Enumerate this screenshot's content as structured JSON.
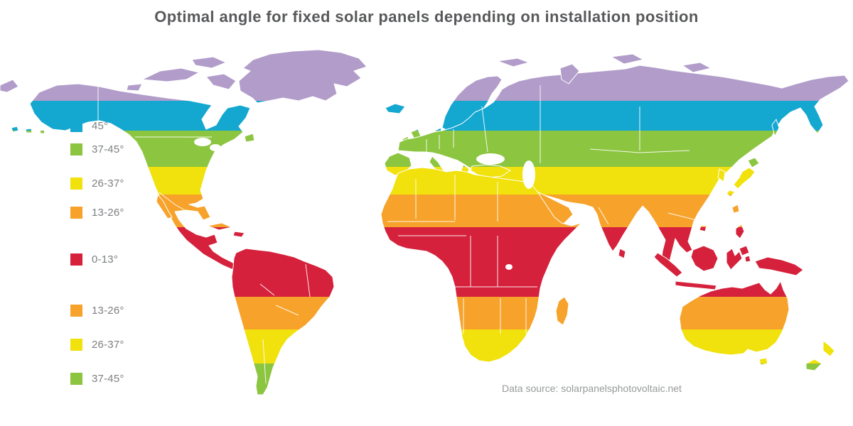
{
  "title": "Optimal angle for fixed solar panels depending on installation position",
  "source": "Data source: solarpanelsphotovoltaic.net",
  "legend": {
    "items": [
      {
        "label": "45°",
        "color": "#14a7d0",
        "hemisphere": "north"
      },
      {
        "label": "37-45°",
        "color": "#8cc540",
        "hemisphere": "north"
      },
      {
        "label": "26-37°",
        "color": "#f1e10c",
        "hemisphere": "north"
      },
      {
        "label": "13-26°",
        "color": "#f7a22a",
        "hemisphere": "north"
      },
      {
        "label": "0-13°",
        "color": "#d5213c",
        "hemisphere": "equatorial"
      },
      {
        "label": "13-26°",
        "color": "#f7a22a",
        "hemisphere": "south"
      },
      {
        "label": "26-37°",
        "color": "#f1e10c",
        "hemisphere": "south"
      },
      {
        "label": "37-45°",
        "color": "#8cc540",
        "hemisphere": "south"
      }
    ]
  },
  "map": {
    "bands": [
      {
        "name": "polar-north",
        "angle": "",
        "color": "#b29cc9",
        "from": 40,
        "to": 142
      },
      {
        "name": "45-north",
        "angle": "45°",
        "color": "#14a7d0",
        "from": 142,
        "to": 184
      },
      {
        "name": "37-45-north",
        "angle": "37-45°",
        "color": "#8cc540",
        "from": 184,
        "to": 235
      },
      {
        "name": "26-37-north",
        "angle": "26-37°",
        "color": "#f1e10c",
        "from": 235,
        "to": 274
      },
      {
        "name": "13-26-north",
        "angle": "13-26°",
        "color": "#f7a22a",
        "from": 274,
        "to": 320
      },
      {
        "name": "0-13-equator",
        "angle": "0-13°",
        "color": "#d5213c",
        "from": 320,
        "to": 418
      },
      {
        "name": "13-26-south",
        "angle": "13-26°",
        "color": "#f7a22a",
        "from": 418,
        "to": 464
      },
      {
        "name": "26-37-south",
        "angle": "26-37°",
        "color": "#f1e10c",
        "from": 464,
        "to": 512
      },
      {
        "name": "37-45-south",
        "angle": "37-45°",
        "color": "#8cc540",
        "from": 512,
        "to": 600
      }
    ]
  },
  "colors": {
    "title_text": "#58595b",
    "legend_text": "#7d7f82",
    "source_text": "#97999b",
    "country_border": "#ffffff"
  }
}
